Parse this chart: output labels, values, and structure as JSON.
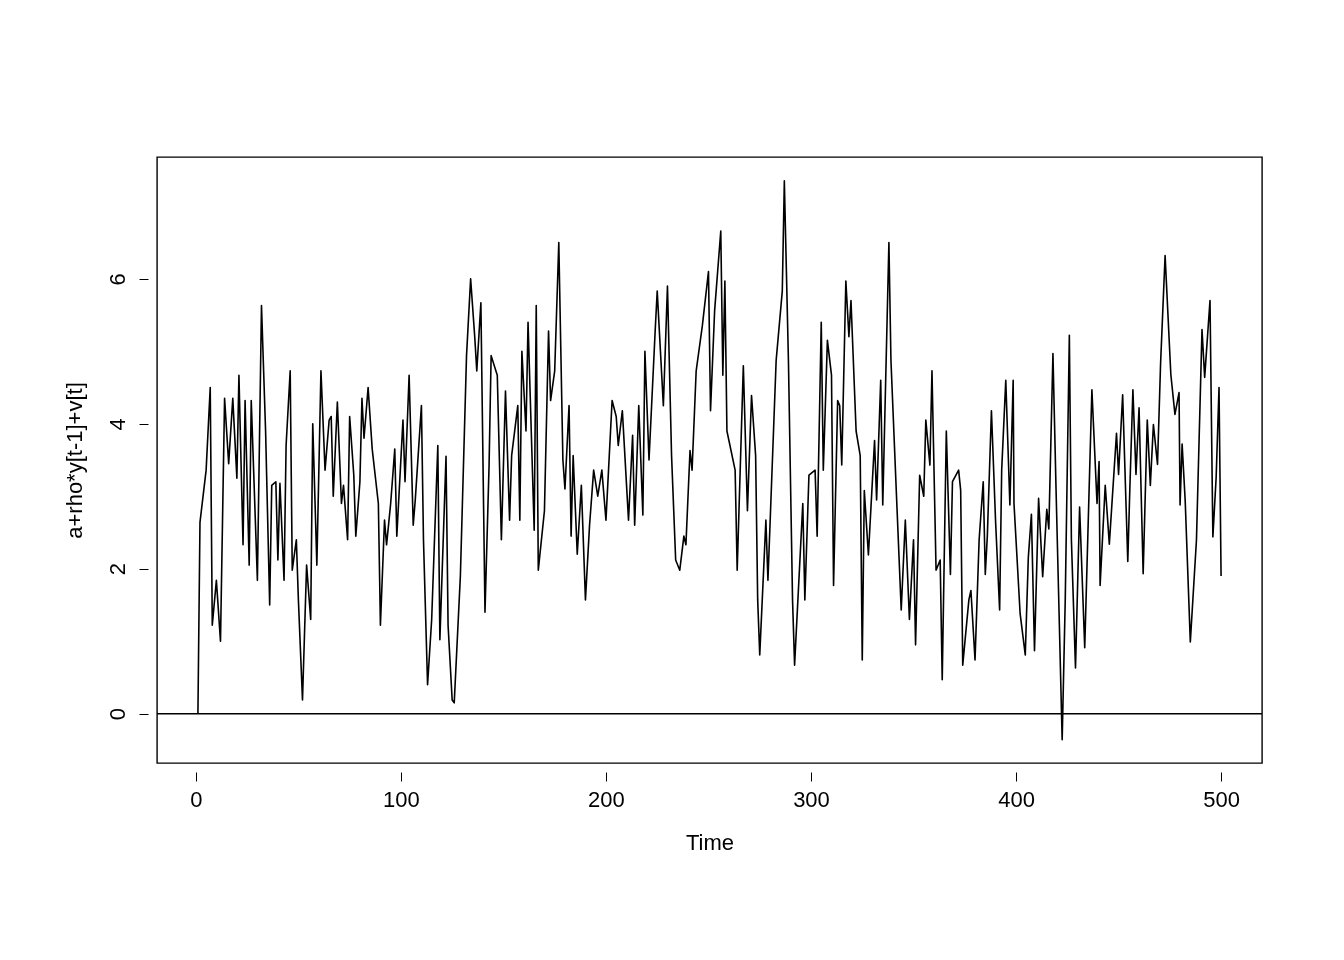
{
  "chart_data": {
    "type": "line",
    "xlabel": "Time",
    "ylabel": "a+rho*y[t-1]+v[t]",
    "x": [
      1,
      2,
      5,
      7,
      8,
      10,
      12,
      14,
      16,
      18,
      20,
      21,
      23,
      24,
      26,
      27,
      29,
      30,
      32,
      34,
      36,
      37,
      39,
      40,
      41,
      43,
      44,
      46,
      47,
      49,
      50,
      52,
      54,
      56,
      57,
      59,
      61,
      63,
      65,
      66,
      67,
      69,
      71,
      72,
      74,
      75,
      77,
      78,
      80,
      81,
      82,
      84,
      86,
      89,
      90,
      92,
      93,
      95,
      97,
      98,
      101,
      102,
      104,
      106,
      107,
      110,
      111,
      113,
      115,
      118,
      119,
      122,
      123,
      125,
      126,
      129,
      132,
      134,
      136,
      137,
      139,
      141,
      143,
      144,
      147,
      149,
      151,
      153,
      154,
      157,
      158,
      159,
      161,
      162,
      165,
      166,
      167,
      170,
      172,
      173,
      175,
      177,
      179,
      180,
      182,
      183,
      184,
      186,
      188,
      190,
      192,
      194,
      196,
      198,
      200,
      203,
      205,
      206,
      208,
      211,
      213,
      214,
      216,
      218,
      219,
      221,
      224,
      225,
      228,
      230,
      232,
      234,
      236,
      238,
      239,
      241,
      242,
      244,
      247,
      250,
      251,
      253,
      256,
      257,
      258,
      259,
      263,
      264,
      267,
      269,
      271,
      273,
      274,
      275,
      278,
      279,
      283,
      286,
      287,
      289,
      291,
      292,
      296,
      297,
      299,
      302,
      303,
      305,
      306,
      308,
      310,
      311,
      313,
      314,
      315,
      317,
      318.5,
      319.5,
      322,
      324,
      325,
      326,
      328,
      331,
      332,
      334,
      335,
      338,
      339,
      342,
      344,
      346,
      348,
      350,
      351,
      353,
      355,
      356,
      358,
      359,
      361,
      363,
      364,
      366,
      368,
      369,
      372,
      373,
      374,
      377,
      378,
      380,
      382,
      384,
      385,
      386,
      388,
      390,
      392,
      393,
      395,
      397,
      398.6,
      399,
      402,
      404.5,
      406,
      407.5,
      409,
      411,
      413,
      415,
      416,
      418,
      419.5,
      421,
      422.5,
      424,
      426,
      427,
      429,
      431,
      433.5,
      437,
      439.5,
      440.5,
      441,
      443.5,
      445.5,
      449,
      450,
      452,
      454.5,
      455.5,
      457,
      458.5,
      460,
      462,
      464,
      465.5,
      467,
      469,
      470.5,
      472.7,
      475.5,
      477.5,
      479.5,
      480,
      481,
      482.5,
      485,
      488,
      490.7,
      492,
      494.6,
      496,
      497.6,
      499,
      500
    ],
    "series": [
      {
        "color": "#000000",
        "values": [
          0,
          2.64,
          3.36,
          4.5,
          1.22,
          1.84,
          1.0,
          4.35,
          3.45,
          4.35,
          3.25,
          4.67,
          2.33,
          4.32,
          2.05,
          4.32,
          2.67,
          1.84,
          5.63,
          3.9,
          1.5,
          3.15,
          3.2,
          2.12,
          3.18,
          1.84,
          3.7,
          4.73,
          1.98,
          2.4,
          1.57,
          0.19,
          2.05,
          1.3,
          4.0,
          2.05,
          4.73,
          3.36,
          4.05,
          4.1,
          3.0,
          4.3,
          2.9,
          3.15,
          2.4,
          4.1,
          3.3,
          2.45,
          3.2,
          4.35,
          3.8,
          4.5,
          3.65,
          2.9,
          1.22,
          2.67,
          2.33,
          2.9,
          3.65,
          2.45,
          4.05,
          3.2,
          4.67,
          2.6,
          2.95,
          4.25,
          2.4,
          0.4,
          1.3,
          3.7,
          1.02,
          3.55,
          1.22,
          0.19,
          0.15,
          1.9,
          4.94,
          6.0,
          5.2,
          4.73,
          5.67,
          1.4,
          3.43,
          4.94,
          4.67,
          2.4,
          4.45,
          2.67,
          3.56,
          4.25,
          2.67,
          5.0,
          3.9,
          5.4,
          2.53,
          5.63,
          1.98,
          2.8,
          5.28,
          4.32,
          4.73,
          6.5,
          3.5,
          3.1,
          4.25,
          2.45,
          3.56,
          2.2,
          3.15,
          1.57,
          2.6,
          3.36,
          3.0,
          3.36,
          2.67,
          4.32,
          4.1,
          3.7,
          4.18,
          2.67,
          3.84,
          2.6,
          4.25,
          2.74,
          5.0,
          3.5,
          5.28,
          5.83,
          4.25,
          5.9,
          3.56,
          2.12,
          1.98,
          2.45,
          2.33,
          3.63,
          3.36,
          4.73,
          5.35,
          6.1,
          4.18,
          5.56,
          6.66,
          4.67,
          5.97,
          3.9,
          3.36,
          1.98,
          4.8,
          2.8,
          4.39,
          3.56,
          1.57,
          0.81,
          2.67,
          1.84,
          4.87,
          5.83,
          7.35,
          4.87,
          1.57,
          0.67,
          2.9,
          1.57,
          3.29,
          3.36,
          2.45,
          5.4,
          3.36,
          5.15,
          4.67,
          1.77,
          4.32,
          4.25,
          3.43,
          5.97,
          5.2,
          5.7,
          3.9,
          3.56,
          0.74,
          3.08,
          2.19,
          3.77,
          2.95,
          4.6,
          2.88,
          6.5,
          4.87,
          2.8,
          1.43,
          2.67,
          1.3,
          2.4,
          0.95,
          3.29,
          3.0,
          4.05,
          3.43,
          4.73,
          1.98,
          2.12,
          0.47,
          3.9,
          1.92,
          3.2,
          3.36,
          3.08,
          0.67,
          1.57,
          1.7,
          0.74,
          2.4,
          3.2,
          1.92,
          2.45,
          4.18,
          2.67,
          1.43,
          3.36,
          4.6,
          2.88,
          4.6,
          2.9,
          1.38,
          0.81,
          2.16,
          2.75,
          0.87,
          2.97,
          1.89,
          2.82,
          2.55,
          4.97,
          3.11,
          1.38,
          -0.36,
          1.57,
          5.22,
          2.4,
          0.63,
          2.85,
          0.91,
          4.47,
          2.9,
          3.48,
          1.77,
          3.15,
          2.34,
          3.87,
          3.3,
          4.4,
          2.1,
          3.1,
          4.47,
          3.3,
          4.22,
          1.93,
          4.05,
          3.15,
          3.99,
          3.44,
          4.83,
          6.32,
          4.68,
          4.13,
          4.43,
          2.88,
          3.72,
          2.94,
          0.99,
          2.4,
          5.3,
          4.64,
          5.7,
          2.44,
          3.26,
          4.5,
          1.9
        ]
      }
    ],
    "xlim": [
      -18.96,
      519.96
    ],
    "ylim": [
      -0.68,
      7.68
    ],
    "xticks": [
      0,
      100,
      200,
      300,
      400,
      500
    ],
    "yticks": [
      0,
      2,
      4,
      6
    ],
    "ref_lines": [
      {
        "axis": "y",
        "value": 0,
        "color": "#000000"
      }
    ],
    "line_style": "solid",
    "grid": false
  }
}
